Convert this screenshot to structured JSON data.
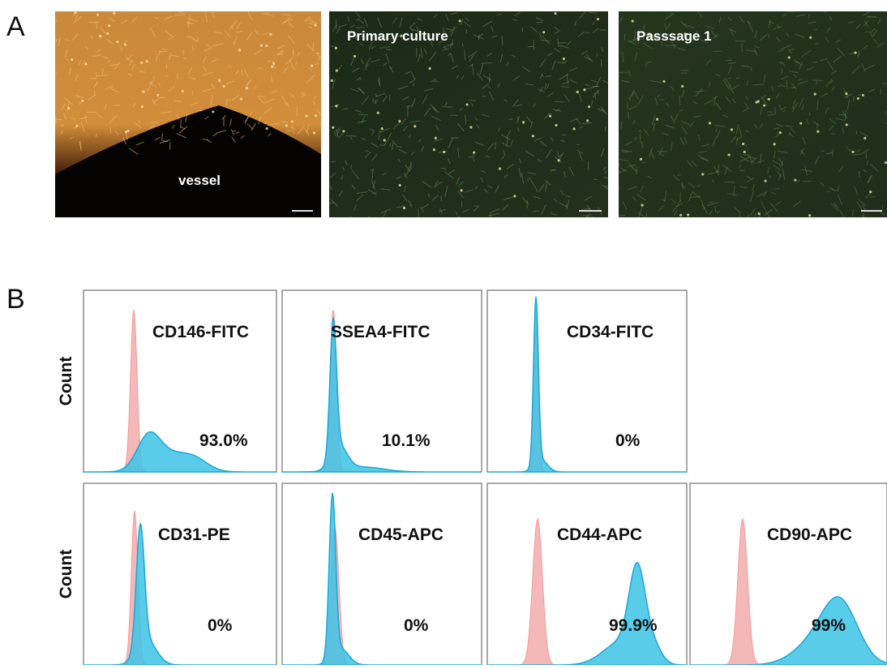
{
  "panel_a": {
    "label": "A",
    "images": [
      {
        "label": "vessel"
      },
      {
        "label": "Primary culture"
      },
      {
        "label": "Passsage 1"
      }
    ]
  },
  "panel_b": {
    "label": "B",
    "rows": [
      {
        "y_label": "Count",
        "plots": [
          {
            "marker": "CD146-FITC",
            "percent": "93.0%"
          },
          {
            "marker": "SSEA4-FITC",
            "percent": "10.1%"
          },
          {
            "marker": "CD34-FITC",
            "percent": "0%"
          }
        ]
      },
      {
        "y_label": "Count",
        "plots": [
          {
            "marker": "CD31-PE",
            "percent": "0%"
          },
          {
            "marker": "CD45-APC",
            "percent": "0%"
          },
          {
            "marker": "CD44-APC",
            "percent": "99.9%"
          },
          {
            "marker": "CD90-APC",
            "percent": "99%"
          }
        ]
      }
    ]
  }
}
